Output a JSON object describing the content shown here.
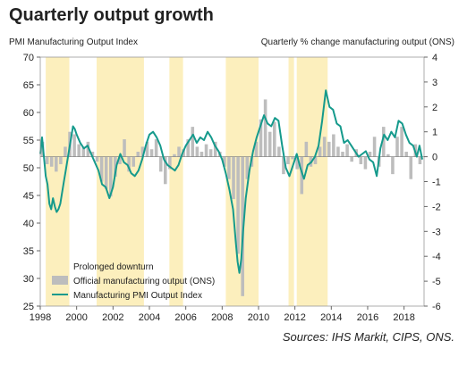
{
  "chart_data": {
    "type": "bar+line",
    "title": "Quarterly output growth",
    "left_axis_label": "PMI Manufacturing Output Index",
    "right_axis_label": "Quarterly % change manufacturing output (ONS)",
    "source": "Sources: IHS Markit, CIPS, ONS.",
    "left_axis": {
      "min": 25,
      "max": 70,
      "ticks": [
        25,
        30,
        35,
        40,
        45,
        50,
        55,
        60,
        65,
        70
      ]
    },
    "right_axis": {
      "min": -6,
      "max": 4,
      "ticks": [
        -6,
        -5,
        -4,
        -3,
        -2,
        -1,
        0,
        1,
        2,
        3,
        4
      ]
    },
    "x_axis": {
      "min": 1998,
      "max": 2019.1,
      "ticks": [
        1998,
        2000,
        2002,
        2004,
        2006,
        2008,
        2010,
        2012,
        2014,
        2016,
        2018
      ]
    },
    "legend": {
      "placement": "bottom-left",
      "items": [
        {
          "label": "Prolonged downturn",
          "kind": "shade",
          "color": "#fcefbd"
        },
        {
          "label": "Official manufacturing output (ONS)",
          "kind": "bar",
          "color": "#bdbdbd"
        },
        {
          "label": "Manufacturing PMI Output Index",
          "kind": "line",
          "color": "#159a8c"
        }
      ]
    },
    "shaded_periods": [
      [
        1998.3,
        1999.6
      ],
      [
        2001.1,
        2003.7
      ],
      [
        2005.1,
        2005.85
      ],
      [
        2008.2,
        2010.0
      ],
      [
        2011.65,
        2011.95
      ],
      [
        2012.1,
        2013.8
      ]
    ],
    "ons_quarterly": [
      {
        "x": 1998.0,
        "y": 0.6
      },
      {
        "x": 1998.25,
        "y": -0.3
      },
      {
        "x": 1998.5,
        "y": -0.4
      },
      {
        "x": 1998.75,
        "y": -0.6
      },
      {
        "x": 1999.0,
        "y": -0.3
      },
      {
        "x": 1999.25,
        "y": 0.4
      },
      {
        "x": 1999.5,
        "y": 1.0
      },
      {
        "x": 1999.75,
        "y": 0.9
      },
      {
        "x": 2000.0,
        "y": 0.5
      },
      {
        "x": 2000.25,
        "y": 0.4
      },
      {
        "x": 2000.5,
        "y": 0.6
      },
      {
        "x": 2000.75,
        "y": 0.2
      },
      {
        "x": 2001.0,
        "y": -0.2
      },
      {
        "x": 2001.25,
        "y": -1.0
      },
      {
        "x": 2001.5,
        "y": -1.3
      },
      {
        "x": 2001.75,
        "y": -1.6
      },
      {
        "x": 2002.0,
        "y": -0.8
      },
      {
        "x": 2002.25,
        "y": -0.3
      },
      {
        "x": 2002.5,
        "y": 0.7
      },
      {
        "x": 2002.75,
        "y": -0.6
      },
      {
        "x": 2003.0,
        "y": -0.4
      },
      {
        "x": 2003.25,
        "y": 0.2
      },
      {
        "x": 2003.5,
        "y": 0.4
      },
      {
        "x": 2003.75,
        "y": 0.6
      },
      {
        "x": 2004.0,
        "y": 0.3
      },
      {
        "x": 2004.25,
        "y": 0.7
      },
      {
        "x": 2004.5,
        "y": -0.6
      },
      {
        "x": 2004.75,
        "y": -1.1
      },
      {
        "x": 2005.0,
        "y": -0.5
      },
      {
        "x": 2005.25,
        "y": 0.1
      },
      {
        "x": 2005.5,
        "y": 0.4
      },
      {
        "x": 2005.75,
        "y": 0.3
      },
      {
        "x": 2006.0,
        "y": 0.7
      },
      {
        "x": 2006.25,
        "y": 1.2
      },
      {
        "x": 2006.5,
        "y": 0.4
      },
      {
        "x": 2006.75,
        "y": 0.2
      },
      {
        "x": 2007.0,
        "y": 0.5
      },
      {
        "x": 2007.25,
        "y": 0.3
      },
      {
        "x": 2007.5,
        "y": 0.6
      },
      {
        "x": 2007.75,
        "y": 0.2
      },
      {
        "x": 2008.0,
        "y": -0.4
      },
      {
        "x": 2008.25,
        "y": -0.9
      },
      {
        "x": 2008.5,
        "y": -1.7
      },
      {
        "x": 2008.75,
        "y": -3.9
      },
      {
        "x": 2009.0,
        "y": -5.6
      },
      {
        "x": 2009.25,
        "y": -0.9
      },
      {
        "x": 2009.5,
        "y": -0.4
      },
      {
        "x": 2009.75,
        "y": 0.6
      },
      {
        "x": 2010.0,
        "y": 1.5
      },
      {
        "x": 2010.25,
        "y": 2.3
      },
      {
        "x": 2010.5,
        "y": 1.0
      },
      {
        "x": 2010.75,
        "y": 1.4
      },
      {
        "x": 2011.0,
        "y": 0.4
      },
      {
        "x": 2011.25,
        "y": -0.7
      },
      {
        "x": 2011.5,
        "y": -0.3
      },
      {
        "x": 2011.75,
        "y": -0.1
      },
      {
        "x": 2012.0,
        "y": -0.5
      },
      {
        "x": 2012.25,
        "y": -1.5
      },
      {
        "x": 2012.5,
        "y": 0.6
      },
      {
        "x": 2012.75,
        "y": -0.4
      },
      {
        "x": 2013.0,
        "y": -0.3
      },
      {
        "x": 2013.25,
        "y": 0.4
      },
      {
        "x": 2013.5,
        "y": 0.8
      },
      {
        "x": 2013.75,
        "y": 0.6
      },
      {
        "x": 2014.0,
        "y": 0.9
      },
      {
        "x": 2014.25,
        "y": 0.4
      },
      {
        "x": 2014.5,
        "y": 0.2
      },
      {
        "x": 2014.75,
        "y": 0.5
      },
      {
        "x": 2015.0,
        "y": -0.2
      },
      {
        "x": 2015.25,
        "y": 0.3
      },
      {
        "x": 2015.5,
        "y": -0.3
      },
      {
        "x": 2015.75,
        "y": -0.5
      },
      {
        "x": 2016.0,
        "y": 0.2
      },
      {
        "x": 2016.25,
        "y": 0.8
      },
      {
        "x": 2016.5,
        "y": -0.4
      },
      {
        "x": 2016.75,
        "y": 1.2
      },
      {
        "x": 2017.0,
        "y": 0.1
      },
      {
        "x": 2017.25,
        "y": -0.7
      },
      {
        "x": 2017.5,
        "y": 0.8
      },
      {
        "x": 2017.75,
        "y": 1.2
      },
      {
        "x": 2018.0,
        "y": 0.2
      },
      {
        "x": 2018.25,
        "y": -0.9
      },
      {
        "x": 2018.5,
        "y": 0.5
      },
      {
        "x": 2018.75,
        "y": -0.3
      }
    ],
    "pmi_output": [
      {
        "x": 1998.0,
        "y": 52.5
      },
      {
        "x": 1998.1,
        "y": 55.5
      },
      {
        "x": 1998.2,
        "y": 52.0
      },
      {
        "x": 1998.3,
        "y": 48.5
      },
      {
        "x": 1998.4,
        "y": 47.0
      },
      {
        "x": 1998.5,
        "y": 43.5
      },
      {
        "x": 1998.6,
        "y": 42.5
      },
      {
        "x": 1998.7,
        "y": 44.5
      },
      {
        "x": 1998.8,
        "y": 43.0
      },
      {
        "x": 1998.9,
        "y": 42.0
      },
      {
        "x": 1999.0,
        "y": 42.5
      },
      {
        "x": 1999.1,
        "y": 43.5
      },
      {
        "x": 1999.2,
        "y": 45.5
      },
      {
        "x": 1999.3,
        "y": 47.5
      },
      {
        "x": 1999.4,
        "y": 49.5
      },
      {
        "x": 1999.5,
        "y": 51.5
      },
      {
        "x": 1999.6,
        "y": 53.5
      },
      {
        "x": 1999.7,
        "y": 55.5
      },
      {
        "x": 1999.8,
        "y": 57.5
      },
      {
        "x": 1999.9,
        "y": 57.0
      },
      {
        "x": 2000.0,
        "y": 56.0
      },
      {
        "x": 2000.2,
        "y": 54.5
      },
      {
        "x": 2000.4,
        "y": 53.5
      },
      {
        "x": 2000.6,
        "y": 54.0
      },
      {
        "x": 2000.8,
        "y": 52.5
      },
      {
        "x": 2001.0,
        "y": 51.0
      },
      {
        "x": 2001.2,
        "y": 49.5
      },
      {
        "x": 2001.4,
        "y": 47.0
      },
      {
        "x": 2001.6,
        "y": 46.5
      },
      {
        "x": 2001.8,
        "y": 44.5
      },
      {
        "x": 2002.0,
        "y": 46.5
      },
      {
        "x": 2002.2,
        "y": 50.5
      },
      {
        "x": 2002.4,
        "y": 52.5
      },
      {
        "x": 2002.6,
        "y": 51.0
      },
      {
        "x": 2002.8,
        "y": 50.5
      },
      {
        "x": 2003.0,
        "y": 49.0
      },
      {
        "x": 2003.2,
        "y": 48.5
      },
      {
        "x": 2003.4,
        "y": 49.5
      },
      {
        "x": 2003.6,
        "y": 51.5
      },
      {
        "x": 2003.8,
        "y": 54.0
      },
      {
        "x": 2004.0,
        "y": 56.0
      },
      {
        "x": 2004.2,
        "y": 56.5
      },
      {
        "x": 2004.4,
        "y": 55.5
      },
      {
        "x": 2004.6,
        "y": 54.0
      },
      {
        "x": 2004.8,
        "y": 51.5
      },
      {
        "x": 2005.0,
        "y": 50.5
      },
      {
        "x": 2005.2,
        "y": 50.0
      },
      {
        "x": 2005.4,
        "y": 49.5
      },
      {
        "x": 2005.6,
        "y": 50.5
      },
      {
        "x": 2005.8,
        "y": 52.5
      },
      {
        "x": 2006.0,
        "y": 54.0
      },
      {
        "x": 2006.2,
        "y": 55.0
      },
      {
        "x": 2006.4,
        "y": 56.0
      },
      {
        "x": 2006.6,
        "y": 54.5
      },
      {
        "x": 2006.8,
        "y": 55.5
      },
      {
        "x": 2007.0,
        "y": 55.0
      },
      {
        "x": 2007.2,
        "y": 56.5
      },
      {
        "x": 2007.4,
        "y": 55.5
      },
      {
        "x": 2007.6,
        "y": 54.0
      },
      {
        "x": 2007.8,
        "y": 53.0
      },
      {
        "x": 2008.0,
        "y": 51.5
      },
      {
        "x": 2008.2,
        "y": 49.0
      },
      {
        "x": 2008.4,
        "y": 46.0
      },
      {
        "x": 2008.6,
        "y": 42.5
      },
      {
        "x": 2008.75,
        "y": 36.5
      },
      {
        "x": 2008.85,
        "y": 33.0
      },
      {
        "x": 2008.95,
        "y": 31.0
      },
      {
        "x": 2009.05,
        "y": 33.5
      },
      {
        "x": 2009.15,
        "y": 38.5
      },
      {
        "x": 2009.3,
        "y": 44.5
      },
      {
        "x": 2009.5,
        "y": 49.5
      },
      {
        "x": 2009.7,
        "y": 53.0
      },
      {
        "x": 2009.9,
        "y": 55.5
      },
      {
        "x": 2010.1,
        "y": 57.5
      },
      {
        "x": 2010.3,
        "y": 59.5
      },
      {
        "x": 2010.5,
        "y": 58.0
      },
      {
        "x": 2010.7,
        "y": 57.5
      },
      {
        "x": 2010.9,
        "y": 59.0
      },
      {
        "x": 2011.1,
        "y": 58.5
      },
      {
        "x": 2011.3,
        "y": 54.0
      },
      {
        "x": 2011.5,
        "y": 50.0
      },
      {
        "x": 2011.7,
        "y": 48.5
      },
      {
        "x": 2011.9,
        "y": 50.5
      },
      {
        "x": 2012.1,
        "y": 52.5
      },
      {
        "x": 2012.3,
        "y": 50.0
      },
      {
        "x": 2012.5,
        "y": 48.0
      },
      {
        "x": 2012.7,
        "y": 50.5
      },
      {
        "x": 2012.9,
        "y": 51.0
      },
      {
        "x": 2013.1,
        "y": 52.0
      },
      {
        "x": 2013.3,
        "y": 54.0
      },
      {
        "x": 2013.5,
        "y": 58.5
      },
      {
        "x": 2013.7,
        "y": 64.0
      },
      {
        "x": 2013.9,
        "y": 61.0
      },
      {
        "x": 2014.1,
        "y": 60.5
      },
      {
        "x": 2014.3,
        "y": 58.0
      },
      {
        "x": 2014.5,
        "y": 57.5
      },
      {
        "x": 2014.7,
        "y": 54.5
      },
      {
        "x": 2014.9,
        "y": 55.0
      },
      {
        "x": 2015.1,
        "y": 54.0
      },
      {
        "x": 2015.3,
        "y": 53.0
      },
      {
        "x": 2015.5,
        "y": 52.0
      },
      {
        "x": 2015.7,
        "y": 52.5
      },
      {
        "x": 2015.9,
        "y": 53.0
      },
      {
        "x": 2016.1,
        "y": 51.5
      },
      {
        "x": 2016.3,
        "y": 51.0
      },
      {
        "x": 2016.5,
        "y": 48.5
      },
      {
        "x": 2016.7,
        "y": 53.5
      },
      {
        "x": 2016.9,
        "y": 56.0
      },
      {
        "x": 2017.1,
        "y": 55.0
      },
      {
        "x": 2017.3,
        "y": 56.5
      },
      {
        "x": 2017.5,
        "y": 55.5
      },
      {
        "x": 2017.7,
        "y": 58.5
      },
      {
        "x": 2017.9,
        "y": 58.0
      },
      {
        "x": 2018.1,
        "y": 56.0
      },
      {
        "x": 2018.3,
        "y": 54.5
      },
      {
        "x": 2018.5,
        "y": 54.0
      },
      {
        "x": 2018.7,
        "y": 52.0
      },
      {
        "x": 2018.85,
        "y": 54.0
      },
      {
        "x": 2019.0,
        "y": 51.5
      }
    ]
  }
}
